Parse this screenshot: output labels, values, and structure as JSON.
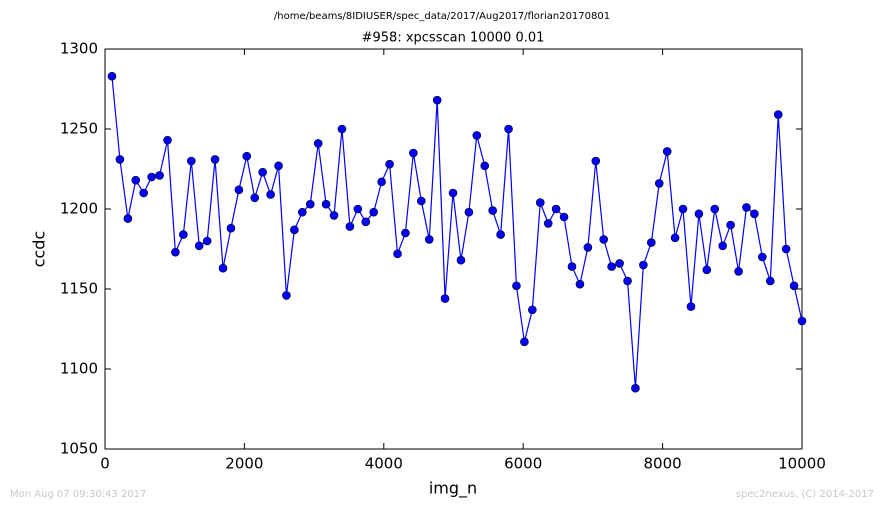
{
  "chart_data": {
    "type": "line",
    "header": "/home/beams/8IDIUSER/spec_data/2017/Aug2017/florian20170801",
    "title": "#958: xpcsscan 10000 0.01",
    "xlabel": "img_n",
    "ylabel": "ccdc",
    "footer_left": "Mon Aug 07 09:30:43 2017",
    "footer_right": "spec2nexus, (C) 2014-2017",
    "x": [
      100,
      214,
      328,
      441,
      555,
      669,
      783,
      897,
      1010,
      1124,
      1238,
      1352,
      1466,
      1579,
      1693,
      1807,
      1921,
      2034,
      2148,
      2262,
      2376,
      2490,
      2603,
      2717,
      2831,
      2945,
      3059,
      3172,
      3286,
      3400,
      3514,
      3628,
      3741,
      3855,
      3969,
      4083,
      4197,
      4310,
      4424,
      4538,
      4652,
      4766,
      4879,
      4993,
      5107,
      5221,
      5334,
      5448,
      5562,
      5676,
      5790,
      5903,
      6017,
      6131,
      6245,
      6359,
      6472,
      6586,
      6700,
      6814,
      6928,
      7041,
      7155,
      7269,
      7383,
      7497,
      7610,
      7724,
      7838,
      7952,
      8066,
      8179,
      8293,
      8407,
      8521,
      8634,
      8748,
      8862,
      8976,
      9090,
      9203,
      9317,
      9431,
      9545,
      9659,
      9772,
      9886,
      10000
    ],
    "series": [
      {
        "name": "ccdc",
        "color": "#0000ff",
        "values": [
          1283,
          1231,
          1194,
          1218,
          1210,
          1220,
          1221,
          1243,
          1173,
          1184,
          1230,
          1177,
          1180,
          1231,
          1163,
          1188,
          1212,
          1233,
          1207,
          1223,
          1209,
          1227,
          1146,
          1187,
          1198,
          1203,
          1241,
          1203,
          1196,
          1250,
          1189,
          1200,
          1192,
          1198,
          1217,
          1228,
          1172,
          1185,
          1235,
          1205,
          1181,
          1268,
          1144,
          1210,
          1168,
          1198,
          1246,
          1227,
          1199,
          1184,
          1250,
          1152,
          1117,
          1137,
          1204,
          1191,
          1200,
          1195,
          1164,
          1153,
          1176,
          1230,
          1181,
          1164,
          1166,
          1155,
          1088,
          1165,
          1179,
          1216,
          1236,
          1182,
          1200,
          1139,
          1197,
          1162,
          1200,
          1177,
          1190,
          1161,
          1201,
          1197,
          1170,
          1155,
          1259,
          1175,
          1152,
          1130
        ]
      }
    ],
    "xlim": [
      0,
      10000
    ],
    "xticks": [
      0,
      2000,
      4000,
      6000,
      8000,
      10000
    ],
    "ylim": [
      1050,
      1300
    ],
    "yticks": [
      1050,
      1100,
      1150,
      1200,
      1250,
      1300
    ],
    "grid": false
  }
}
